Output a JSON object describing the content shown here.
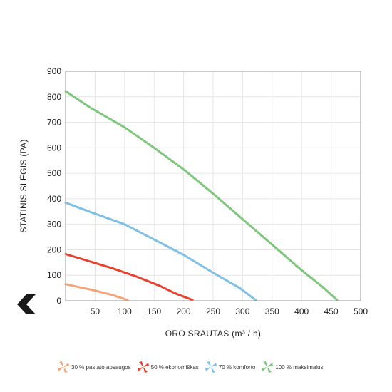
{
  "chart_data": {
    "type": "line",
    "xlabel": "ORO SRAUTAS (m³ / h)",
    "ylabel": "STATINIS SLĖGIS (PA)",
    "xlim": [
      0,
      500
    ],
    "ylim": [
      0,
      900
    ],
    "xticks": [
      "50",
      "100",
      "150",
      "200",
      "250",
      "300",
      "350",
      "400",
      "450",
      "500"
    ],
    "yticks": [
      "0",
      "100",
      "200",
      "300",
      "400",
      "500",
      "600",
      "700",
      "800",
      "900"
    ],
    "grid": true,
    "legend_position": "bottom",
    "series": [
      {
        "name": "30 % pastato apsaugos",
        "color": "#f4a37a",
        "points": [
          [
            0,
            65
          ],
          [
            20,
            55
          ],
          [
            50,
            40
          ],
          [
            80,
            22
          ],
          [
            105,
            3
          ]
        ]
      },
      {
        "name": "50 % ekonomiškas",
        "color": "#e8402d",
        "points": [
          [
            0,
            183
          ],
          [
            40,
            155
          ],
          [
            80,
            127
          ],
          [
            120,
            95
          ],
          [
            160,
            58
          ],
          [
            185,
            30
          ],
          [
            215,
            3
          ]
        ]
      },
      {
        "name": "70 % komforto",
        "color": "#7ec0e6",
        "points": [
          [
            0,
            385
          ],
          [
            40,
            350
          ],
          [
            100,
            300
          ],
          [
            150,
            240
          ],
          [
            200,
            180
          ],
          [
            250,
            110
          ],
          [
            295,
            50
          ],
          [
            322,
            3
          ]
        ]
      },
      {
        "name": "100 % maksimalus",
        "color": "#7ec67b",
        "points": [
          [
            0,
            822
          ],
          [
            40,
            760
          ],
          [
            100,
            680
          ],
          [
            150,
            600
          ],
          [
            200,
            515
          ],
          [
            250,
            420
          ],
          [
            300,
            320
          ],
          [
            350,
            220
          ],
          [
            400,
            120
          ],
          [
            435,
            55
          ],
          [
            460,
            3
          ]
        ]
      }
    ]
  },
  "icons": {
    "back": "chevron-left-icon",
    "legend": "fan-icon"
  }
}
